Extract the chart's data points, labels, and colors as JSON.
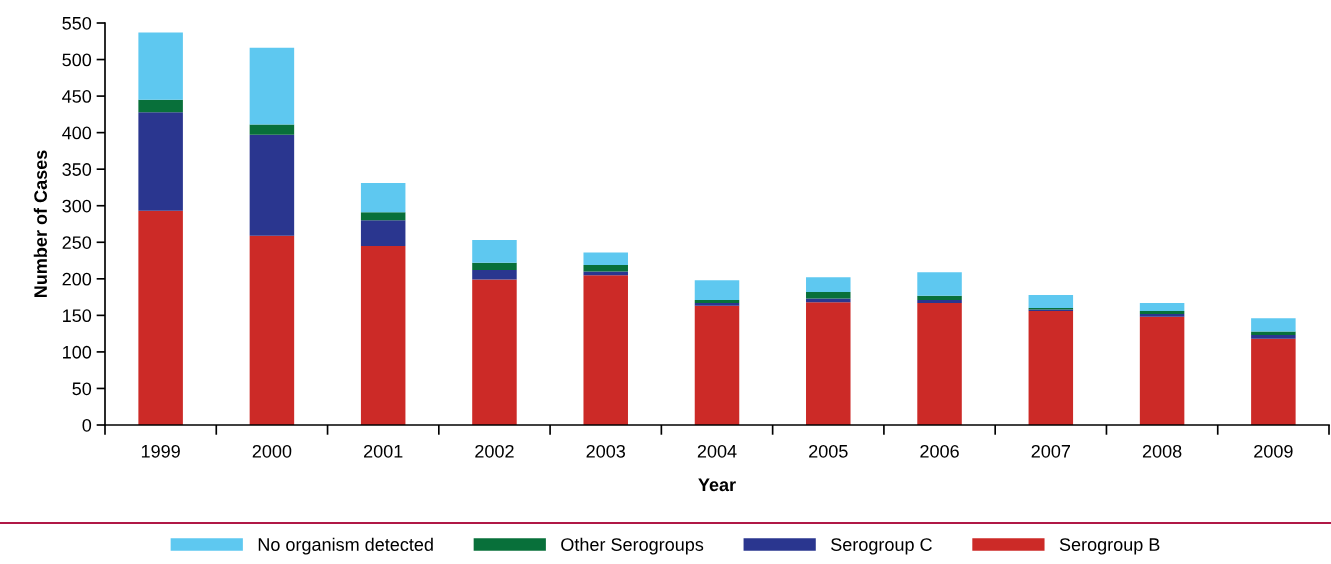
{
  "chart_data": {
    "type": "bar",
    "stacked": true,
    "xlabel": "Year",
    "ylabel": "Number of Cases",
    "categories": [
      "1999",
      "2000",
      "2001",
      "2002",
      "2003",
      "2004",
      "2005",
      "2006",
      "2007",
      "2008",
      "2009"
    ],
    "series": [
      {
        "name": "Serogroup B",
        "color": "#cc2a27",
        "values": [
          293,
          259,
          245,
          199,
          205,
          163,
          168,
          167,
          156,
          148,
          118
        ]
      },
      {
        "name": "Serogroup C",
        "color": "#2a368f",
        "values": [
          135,
          138,
          35,
          13,
          5,
          4,
          5,
          4,
          2,
          4,
          5
        ]
      },
      {
        "name": "Other Serogroups",
        "color": "#08703a",
        "values": [
          17,
          14,
          11,
          10,
          9,
          4,
          9,
          6,
          2,
          4,
          5
        ]
      },
      {
        "name": "No organism detected",
        "color": "#5ec8f0",
        "values": [
          92,
          105,
          40,
          31,
          17,
          27,
          20,
          32,
          18,
          11,
          18
        ]
      }
    ],
    "ylim": [
      0,
      550
    ],
    "yticks": [
      0,
      50,
      100,
      150,
      200,
      250,
      300,
      350,
      400,
      450,
      500,
      550
    ],
    "grid": false,
    "legend": "bottom"
  }
}
